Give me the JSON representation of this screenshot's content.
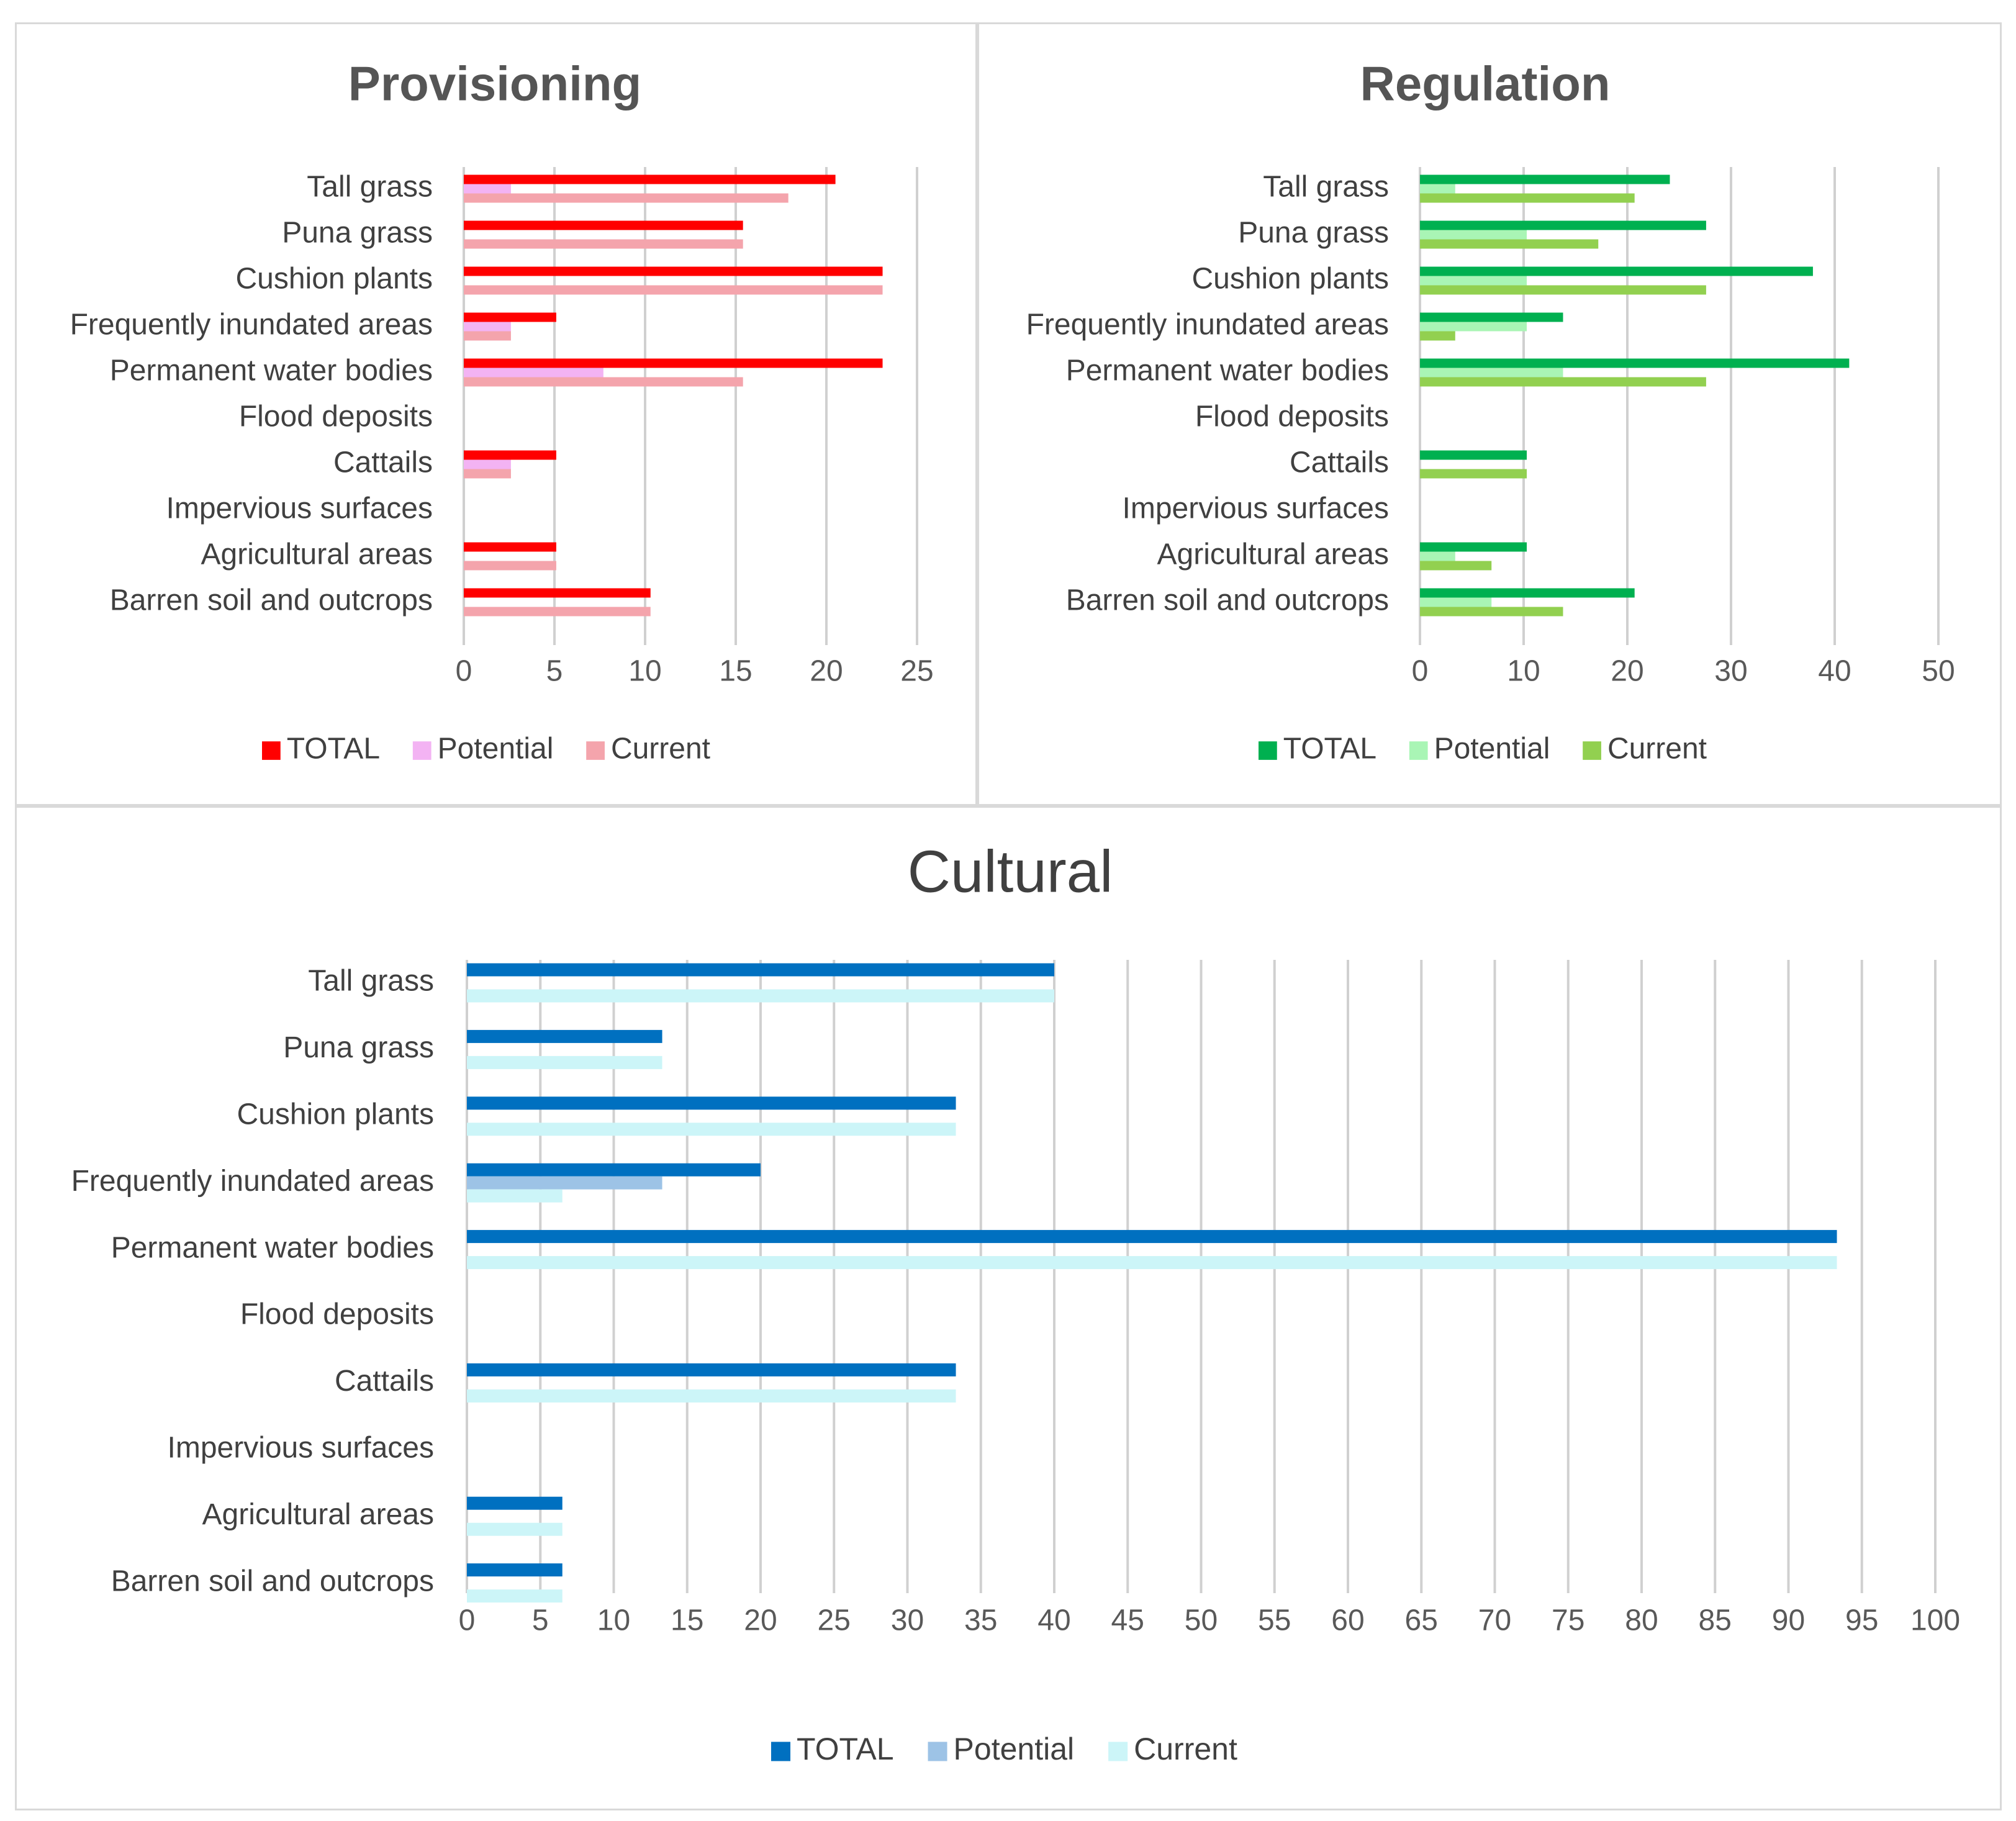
{
  "chart_data": [
    {
      "type": "bar",
      "orientation": "horizontal",
      "title": "Provisioning",
      "categories": [
        "Tall grass",
        "Puna grass",
        "Cushion plants",
        "Frequently inundated areas",
        "Permanent water bodies",
        "Flood deposits",
        "Cattails",
        "Impervious surfaces",
        "Agricultural areas",
        "Barren soil and outcrops"
      ],
      "series": [
        {
          "name": "TOTAL",
          "color": "#ff0000",
          "values": [
            20.5,
            15.4,
            23.1,
            5.1,
            23.1,
            0,
            5.1,
            0,
            5.1,
            10.3
          ]
        },
        {
          "name": "Potential",
          "color": "#f3b3f3",
          "values": [
            2.6,
            0,
            0,
            2.6,
            7.7,
            0,
            2.6,
            0,
            0,
            0
          ]
        },
        {
          "name": "Current",
          "color": "#f4a4ac",
          "values": [
            17.9,
            15.4,
            23.1,
            2.6,
            15.4,
            0,
            2.6,
            0,
            5.1,
            10.3
          ]
        }
      ],
      "xlim": [
        0,
        25
      ],
      "ticks": [
        0,
        5,
        10,
        15,
        20,
        25
      ],
      "grid": true,
      "legend": "bottom"
    },
    {
      "type": "bar",
      "orientation": "horizontal",
      "title": "Regulation",
      "categories": [
        "Tall grass",
        "Puna grass",
        "Cushion plants",
        "Frequently inundated areas",
        "Permanent water bodies",
        "Flood deposits",
        "Cattails",
        "Impervious surfaces",
        "Agricultural areas",
        "Barren soil and outcrops"
      ],
      "series": [
        {
          "name": "TOTAL",
          "color": "#00b050",
          "values": [
            24.1,
            27.6,
            37.9,
            13.8,
            41.4,
            0,
            10.3,
            0,
            10.3,
            20.7
          ]
        },
        {
          "name": "Potential",
          "color": "#a9f5b5",
          "values": [
            3.4,
            10.3,
            10.3,
            10.3,
            13.8,
            0,
            0,
            0,
            3.4,
            6.9
          ]
        },
        {
          "name": "Current",
          "color": "#92d050",
          "values": [
            20.7,
            17.2,
            27.6,
            3.4,
            27.6,
            0,
            10.3,
            0,
            6.9,
            13.8
          ]
        }
      ],
      "xlim": [
        0,
        50
      ],
      "ticks": [
        0,
        10,
        20,
        30,
        40,
        50
      ],
      "grid": true,
      "legend": "bottom"
    },
    {
      "type": "bar",
      "orientation": "horizontal",
      "title": "Cultural",
      "categories": [
        "Tall grass",
        "Puna grass",
        "Cushion plants",
        "Frequently inundated areas",
        "Permanent water bodies",
        "Flood deposits",
        "Cattails",
        "Impervious surfaces",
        "Agricultural areas",
        "Barren soil and outcrops"
      ],
      "series": [
        {
          "name": "TOTAL",
          "color": "#0070c0",
          "values": [
            40,
            13.3,
            33.3,
            20,
            93.3,
            0,
            33.3,
            0,
            6.5,
            6.5
          ]
        },
        {
          "name": "Potential",
          "color": "#9dc3e6",
          "values": [
            0,
            0,
            0,
            13.3,
            0,
            0,
            0,
            0,
            0,
            0
          ]
        },
        {
          "name": "Current",
          "color": "#ccf5f8",
          "values": [
            40,
            13.3,
            33.3,
            6.5,
            93.3,
            0,
            33.3,
            0,
            6.5,
            6.5
          ]
        }
      ],
      "xlim": [
        0,
        100
      ],
      "ticks": [
        0,
        5,
        10,
        15,
        20,
        25,
        30,
        35,
        40,
        45,
        50,
        55,
        60,
        65,
        70,
        75,
        80,
        85,
        90,
        95,
        100
      ],
      "grid": true,
      "legend": "bottom"
    }
  ]
}
